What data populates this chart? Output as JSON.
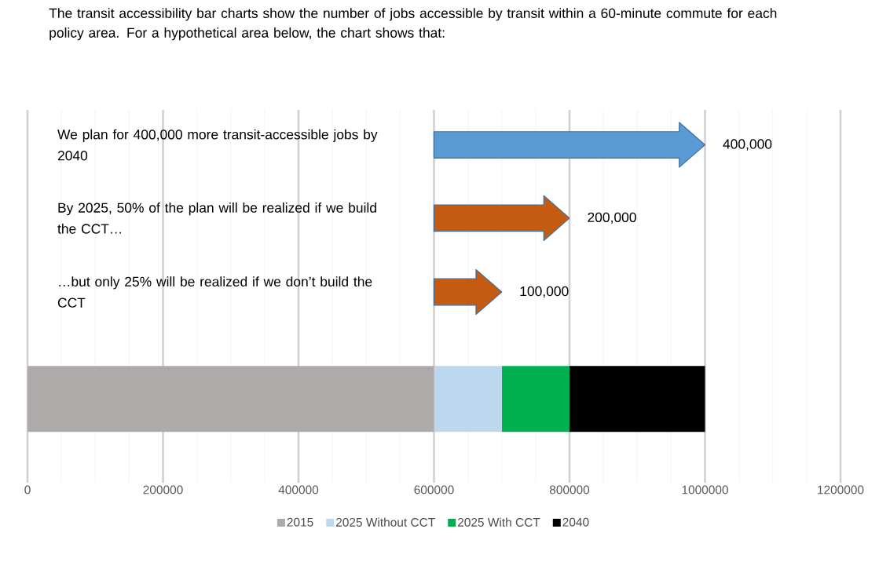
{
  "chart_data": {
    "type": "bar",
    "orientation": "horizontal",
    "stacked": true,
    "title": "The transit accessibility bar charts show the number of jobs accessible by transit within a 60-minute commute for each policy area.  For a hypothetical area below, the chart shows that:",
    "categories": [
      null
    ],
    "series": [
      {
        "name": "2015",
        "color": "#aeaaaa",
        "values": [
          600000
        ]
      },
      {
        "name": "2025 Without CCT",
        "color": "#bdd7ee",
        "values": [
          100000
        ]
      },
      {
        "name": "2025 With CCT",
        "color": "#00b050",
        "values": [
          100000
        ]
      },
      {
        "name": "2040",
        "color": "#000000",
        "values": [
          200000
        ]
      }
    ],
    "xlim": [
      0,
      1200000
    ],
    "xticks": [
      0,
      200000,
      400000,
      600000,
      800000,
      1000000,
      1200000
    ],
    "grid": "x",
    "legend": "bottom",
    "tick_labels": "x",
    "annotations": [
      "We plan for 400,000 more transit-accessible jobs by 2040",
      "400,000",
      "By 2025, 50% of the plan will be realized if we build the CCT…",
      "200,000",
      "…but only 25% will be realized if we don’t build the CCT",
      "100,000"
    ]
  }
}
